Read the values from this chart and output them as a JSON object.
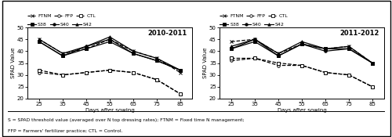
{
  "days": [
    25,
    35,
    45,
    55,
    65,
    75,
    85
  ],
  "year1_title": "2010-2011",
  "year2_title": "2011-2012",
  "year1": {
    "S38": [
      44,
      38,
      41,
      44,
      39,
      36,
      32
    ],
    "S40": [
      44,
      38,
      42,
      45,
      39,
      36,
      32
    ],
    "S42": [
      45,
      39,
      42,
      46,
      40,
      37,
      32
    ],
    "FTNM": [
      45,
      39,
      41,
      45,
      40,
      37,
      31
    ],
    "FFP": [
      31,
      30,
      31,
      32,
      31,
      28,
      22
    ],
    "CTL": [
      32,
      30,
      31,
      32,
      31,
      28,
      22
    ]
  },
  "year2": {
    "S38": [
      41,
      44,
      38,
      43,
      41,
      41,
      35
    ],
    "S40": [
      41,
      45,
      38,
      43,
      40,
      41,
      35
    ],
    "S42": [
      42,
      45,
      39,
      44,
      41,
      42,
      35
    ],
    "FTNM": [
      44,
      45,
      39,
      43,
      41,
      42,
      35
    ],
    "FFP": [
      36,
      37,
      34,
      34,
      31,
      30,
      25
    ],
    "CTL": [
      37,
      37,
      35,
      34,
      31,
      30,
      25
    ]
  },
  "xlabel": "Days after sowing",
  "ylabel": "SPAD Value",
  "ylim": [
    20,
    50
  ],
  "yticks": [
    20,
    25,
    30,
    35,
    40,
    45,
    50
  ],
  "footnote1": "S = SPAD threshold value (averaged over N top dressing rates); FTNM = Fixed time N management;",
  "footnote2": "FFP = Farmers' fertilizer practice; CTL = Control.",
  "bg_color": "#ffffff",
  "line_color": "#000000"
}
